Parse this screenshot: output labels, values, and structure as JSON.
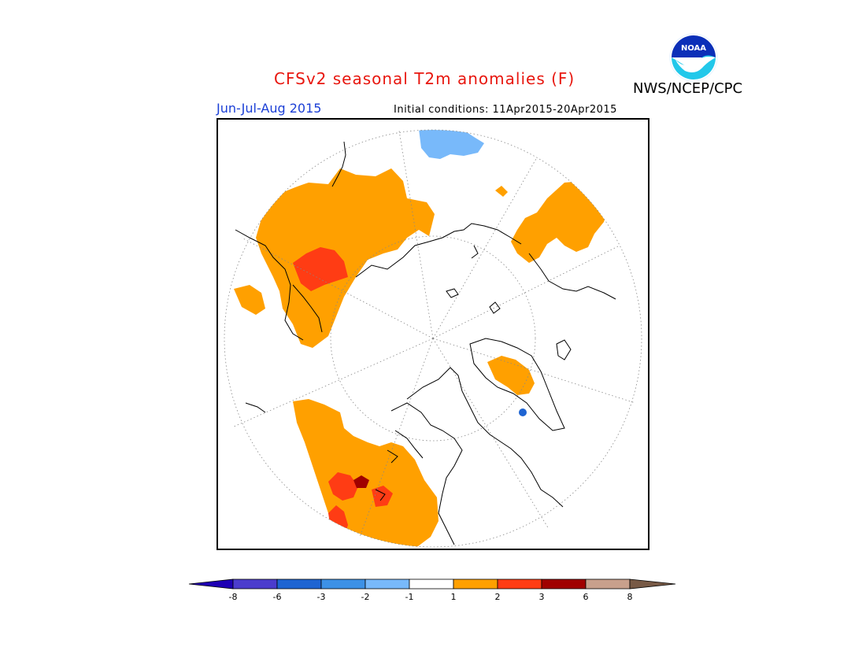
{
  "header": {
    "title": "CFSv2 seasonal T2m anomalies (F)",
    "agency": "NWS/NCEP/CPC",
    "period": "Jun-Jul-Aug 2015",
    "initial_conditions": "Initial conditions: 11Apr2015-20Apr2015"
  },
  "logo": {
    "text": "NOAA",
    "icon": "noaa-logo-icon"
  },
  "map": {
    "projection": "north-polar-stereographic",
    "graticule": "dotted",
    "coastlines": true
  },
  "colorbar": {
    "ticks": [
      "-8",
      "-6",
      "-3",
      "-2",
      "-1",
      "1",
      "2",
      "3",
      "6",
      "8"
    ],
    "colors": {
      "below_min": "#1e00b4",
      "b1": "#4b3ccd",
      "b2": "#1e64d2",
      "b3": "#3c91e6",
      "b4": "#78b9fa",
      "neutral": "#ffffff",
      "p1": "#ffa000",
      "p2": "#ff3c14",
      "p3": "#a00000",
      "p4": "#c8a08c",
      "above_max": "#785a46"
    }
  },
  "anomaly_colors": {
    "warm1": "#ffa000",
    "warm2": "#ff3c14",
    "warm3": "#a00000",
    "cool1": "#78b9fa",
    "cool2": "#1e64d2"
  }
}
